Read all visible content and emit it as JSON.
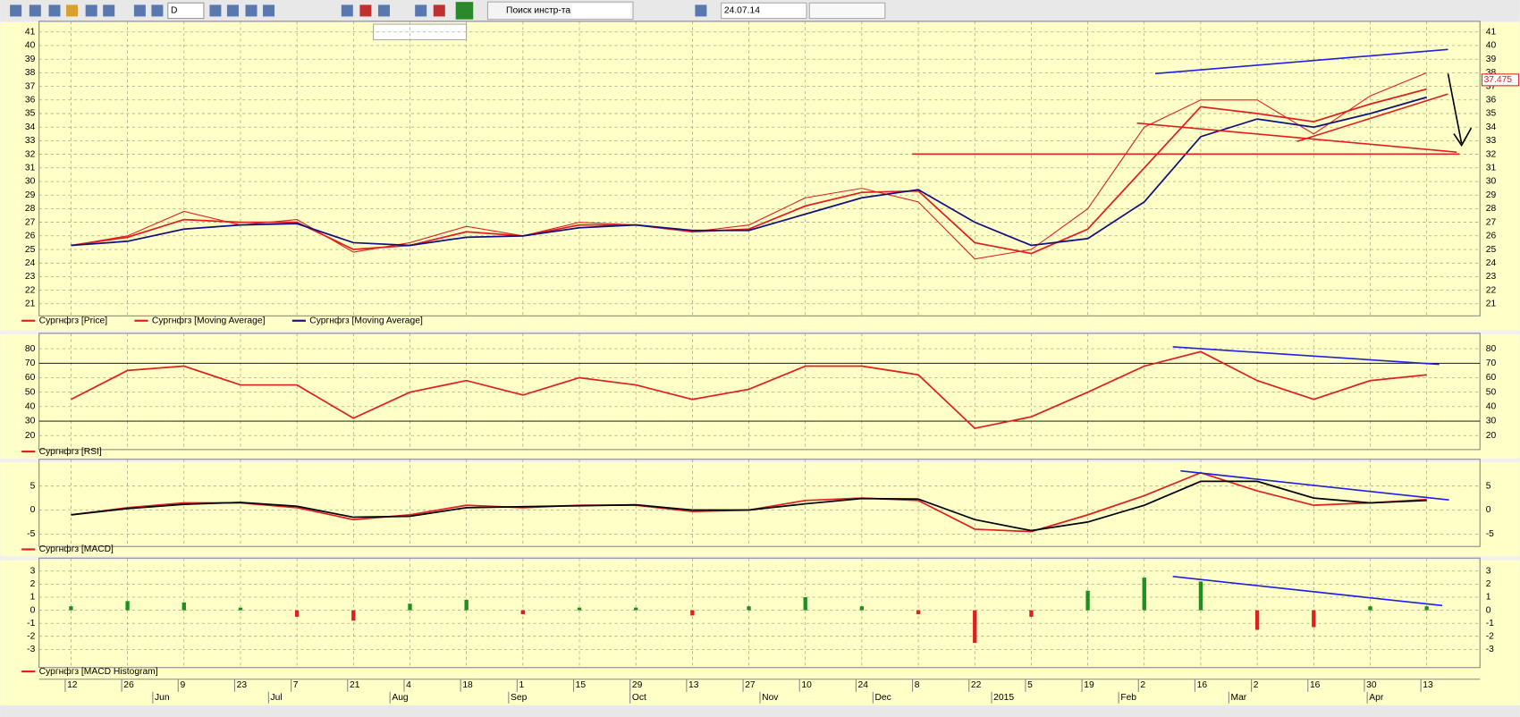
{
  "toolbar": {
    "period": "D",
    "search": "Поиск инстр-та",
    "date": "24.07.14"
  },
  "chart_data": [
    {
      "type": "line",
      "ylim": [
        20.4,
        41.5
      ],
      "yticks": [
        21,
        22,
        23,
        24,
        25,
        26,
        27,
        28,
        29,
        30,
        31,
        32,
        33,
        34,
        35,
        36,
        37,
        38,
        39,
        40,
        41
      ],
      "grid": true,
      "last_value": 37.475,
      "series": [
        {
          "name": "Сургнфгз [Price]",
          "color": "#e02020",
          "values": [
            25.3,
            26.0,
            27.8,
            26.8,
            27.2,
            24.8,
            25.5,
            26.7,
            26.0,
            27.0,
            26.8,
            26.3,
            26.8,
            28.8,
            29.5,
            28.5,
            24.3,
            25.0,
            28.0,
            34.0,
            36.0,
            36.0,
            33.5,
            36.3,
            38.0
          ]
        },
        {
          "name": "Сургнфгз [Moving Average]",
          "color": "#e02020",
          "values": [
            25.3,
            25.9,
            27.2,
            27.0,
            27.0,
            25.0,
            25.3,
            26.3,
            26.0,
            26.8,
            26.8,
            26.3,
            26.5,
            28.2,
            29.2,
            29.3,
            25.5,
            24.7,
            26.5,
            31.0,
            35.5,
            35.0,
            34.4,
            35.7,
            36.8
          ]
        },
        {
          "name": "Сургнфгз [Moving Average]",
          "color": "#101080",
          "values": [
            25.3,
            25.6,
            26.5,
            26.8,
            26.9,
            25.5,
            25.3,
            25.9,
            26.0,
            26.6,
            26.8,
            26.4,
            26.4,
            27.6,
            28.8,
            29.4,
            27.0,
            25.3,
            25.8,
            28.5,
            33.3,
            34.6,
            34.0,
            35.0,
            36.2
          ]
        }
      ]
    },
    {
      "type": "line",
      "ylim": [
        13,
        88
      ],
      "yticks": [
        20,
        30,
        40,
        50,
        60,
        70,
        80
      ],
      "grid": true,
      "levels": [
        30,
        70
      ],
      "series": [
        {
          "name": "Сургнфгз [RSI]",
          "color": "#e02020",
          "values": [
            45,
            65,
            68,
            55,
            55,
            32,
            50,
            58,
            48,
            60,
            55,
            45,
            52,
            68,
            68,
            62,
            25,
            33,
            50,
            68,
            78,
            58,
            45,
            58,
            62
          ]
        }
      ]
    },
    {
      "type": "line",
      "ylim": [
        -6.8,
        9.8
      ],
      "yticks": [
        -5,
        0,
        5
      ],
      "grid": true,
      "series": [
        {
          "name": "Сургнфгз [MACD]",
          "color": "#e02020",
          "values": [
            -1,
            0.5,
            1.5,
            1.5,
            0.5,
            -2,
            -1,
            1,
            0.5,
            1,
            1,
            -0.3,
            0,
            2,
            2.5,
            2,
            -4,
            -4.5,
            -1,
            3,
            7.8,
            4,
            1,
            1.5,
            2.2
          ]
        },
        {
          "color": "#000000",
          "values": [
            -1,
            0.3,
            1.2,
            1.6,
            0.8,
            -1.5,
            -1.3,
            0.5,
            0.7,
            0.9,
            1.1,
            0,
            0,
            1.3,
            2.4,
            2.3,
            -2,
            -4.3,
            -2.5,
            1,
            6,
            6,
            2.5,
            1.5,
            2
          ]
        }
      ]
    },
    {
      "type": "bar",
      "ylim": [
        -4.1,
        3.7
      ],
      "yticks": [
        -3,
        -2,
        -1,
        0,
        1,
        2,
        3
      ],
      "grid": true,
      "categories": [
        "12",
        "26",
        "9",
        "23",
        "7",
        "21",
        "4",
        "18",
        "1",
        "15",
        "29",
        "13",
        "27",
        "10",
        "24",
        "8",
        "22",
        "5",
        "19",
        "2",
        "16",
        "2",
        "16",
        "30",
        "13"
      ],
      "month_labels": [
        "Jun",
        "Jul",
        "Aug",
        "Sep",
        "Oct",
        "Nov",
        "Dec",
        "2015",
        "Feb",
        "Mar",
        "Apr"
      ],
      "colors": {
        "positive": "#1f8f1f",
        "negative": "#e02020"
      },
      "series": [
        {
          "name": "Сургнфгз [MACD Histogram]",
          "color": "#e02020",
          "values": [
            0.3,
            0.7,
            0.6,
            0.2,
            -0.5,
            -0.8,
            0.5,
            0.8,
            -0.3,
            0.2,
            0.2,
            -0.4,
            0.3,
            1.0,
            0.3,
            -0.3,
            -2.5,
            -0.5,
            1.5,
            2.5,
            2.2,
            -1.5,
            -1.3,
            0.3,
            0.3
          ]
        }
      ]
    }
  ]
}
